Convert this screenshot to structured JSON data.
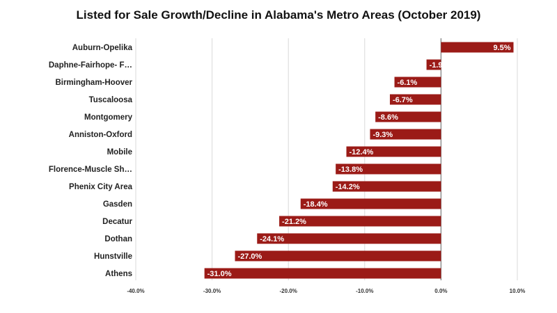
{
  "chart_data": {
    "type": "bar",
    "orientation": "horizontal",
    "title": "Listed for Sale Growth/Decline in Alabama's Metro Areas (October 2019)",
    "xlabel": "",
    "ylabel": "",
    "categories": [
      "Auburn-Opelika",
      "Daphne-Fairhope- F…",
      "Birmingham-Hoover",
      "Tuscaloosa",
      "Montgomery",
      "Anniston-Oxford",
      "Mobile",
      "Florence-Muscle Sh…",
      "Phenix City Area",
      "Gasden",
      "Decatur",
      "Dothan",
      "Hunstville",
      "Athens"
    ],
    "values": [
      9.5,
      -1.9,
      -6.1,
      -6.7,
      -8.6,
      -9.3,
      -12.4,
      -13.8,
      -14.2,
      -18.4,
      -21.2,
      -24.1,
      -27.0,
      -31.0
    ],
    "value_labels": [
      "9.5%",
      "-1.9%",
      "-6.1%",
      "-6.7%",
      "-8.6%",
      "-9.3%",
      "-12.4%",
      "-13.8%",
      "-14.2%",
      "-18.4%",
      "-21.2%",
      "-24.1%",
      "-27.0%",
      "-31.0%"
    ],
    "xlim": [
      -40,
      10
    ],
    "xticks": [
      -40,
      -30,
      -20,
      -10,
      0,
      10
    ],
    "xtick_labels": [
      "-40.0%",
      "-30.0%",
      "-20.0%",
      "-10.0%",
      "0.0%",
      "10.0%"
    ],
    "grid": "vertical",
    "legend": "none",
    "colors": {
      "bar": "#9b1b17",
      "grid": "#d9d9d9",
      "zero_line": "#7a7a7a"
    }
  }
}
